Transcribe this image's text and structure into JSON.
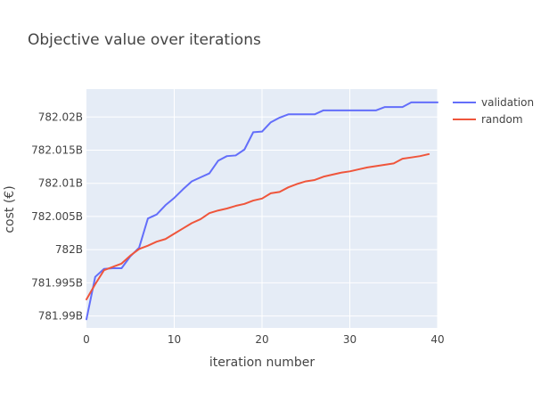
{
  "chart_data": {
    "type": "line",
    "title": "Objective value over iterations",
    "xlabel": "iteration number",
    "ylabel": "cost (€)",
    "xlim": [
      0,
      40
    ],
    "ylim": [
      781.9882,
      782.0242
    ],
    "x_ticks": [
      0,
      10,
      20,
      30,
      40
    ],
    "x_tick_labels": [
      "0",
      "10",
      "20",
      "30",
      "40"
    ],
    "y_ticks": [
      781.99,
      781.995,
      782.0,
      782.005,
      782.01,
      782.015,
      782.02
    ],
    "y_tick_labels": [
      "781.99B",
      "781.995B",
      "782B",
      "782.005B",
      "782.01B",
      "782.015B",
      "782.02B"
    ],
    "y_unit": "billions",
    "grid": true,
    "legend_position": "top-right",
    "series": [
      {
        "name": "validation",
        "color": "#636efa",
        "x": [
          0,
          1,
          2,
          3,
          4,
          5,
          6,
          7,
          8,
          9,
          10,
          11,
          12,
          13,
          14,
          15,
          16,
          17,
          18,
          19,
          20,
          21,
          22,
          23,
          24,
          25,
          26,
          27,
          28,
          29,
          30,
          31,
          32,
          33,
          34,
          35,
          36,
          37,
          38,
          39,
          40
        ],
        "y": [
          781.9895,
          781.9959,
          781.9971,
          781.9972,
          781.9972,
          781.999,
          782.0003,
          782.0047,
          782.0053,
          782.0067,
          782.0078,
          782.0091,
          782.0103,
          782.0109,
          782.0115,
          782.0134,
          782.0141,
          782.0142,
          782.0151,
          782.0177,
          782.0178,
          782.0192,
          782.0199,
          782.0204,
          782.0204,
          782.0204,
          782.0204,
          782.021,
          782.021,
          782.021,
          782.021,
          782.021,
          782.021,
          782.021,
          782.0215,
          782.0215,
          782.0215,
          782.0222,
          782.0222,
          782.0222,
          782.0222
        ]
      },
      {
        "name": "random",
        "color": "#ef553b",
        "x": [
          0,
          1,
          2,
          3,
          4,
          5,
          6,
          7,
          8,
          9,
          10,
          11,
          12,
          13,
          14,
          15,
          16,
          17,
          18,
          19,
          20,
          21,
          22,
          23,
          24,
          25,
          26,
          27,
          28,
          29,
          30,
          31,
          32,
          33,
          34,
          35,
          36,
          37,
          38,
          39
        ],
        "y": [
          781.9925,
          781.9948,
          781.9969,
          781.9974,
          781.9979,
          781.9991,
          782.0001,
          782.0006,
          782.0012,
          782.0016,
          782.0024,
          782.0032,
          782.004,
          782.0046,
          782.0055,
          782.0059,
          782.0062,
          782.0066,
          782.0069,
          782.0074,
          782.0077,
          782.0085,
          782.0087,
          782.0094,
          782.0099,
          782.0103,
          782.0105,
          782.011,
          782.0113,
          782.0116,
          782.0118,
          782.0121,
          782.0124,
          782.0126,
          782.0128,
          782.013,
          782.0137,
          782.0139,
          782.0141,
          782.0144
        ]
      }
    ]
  }
}
